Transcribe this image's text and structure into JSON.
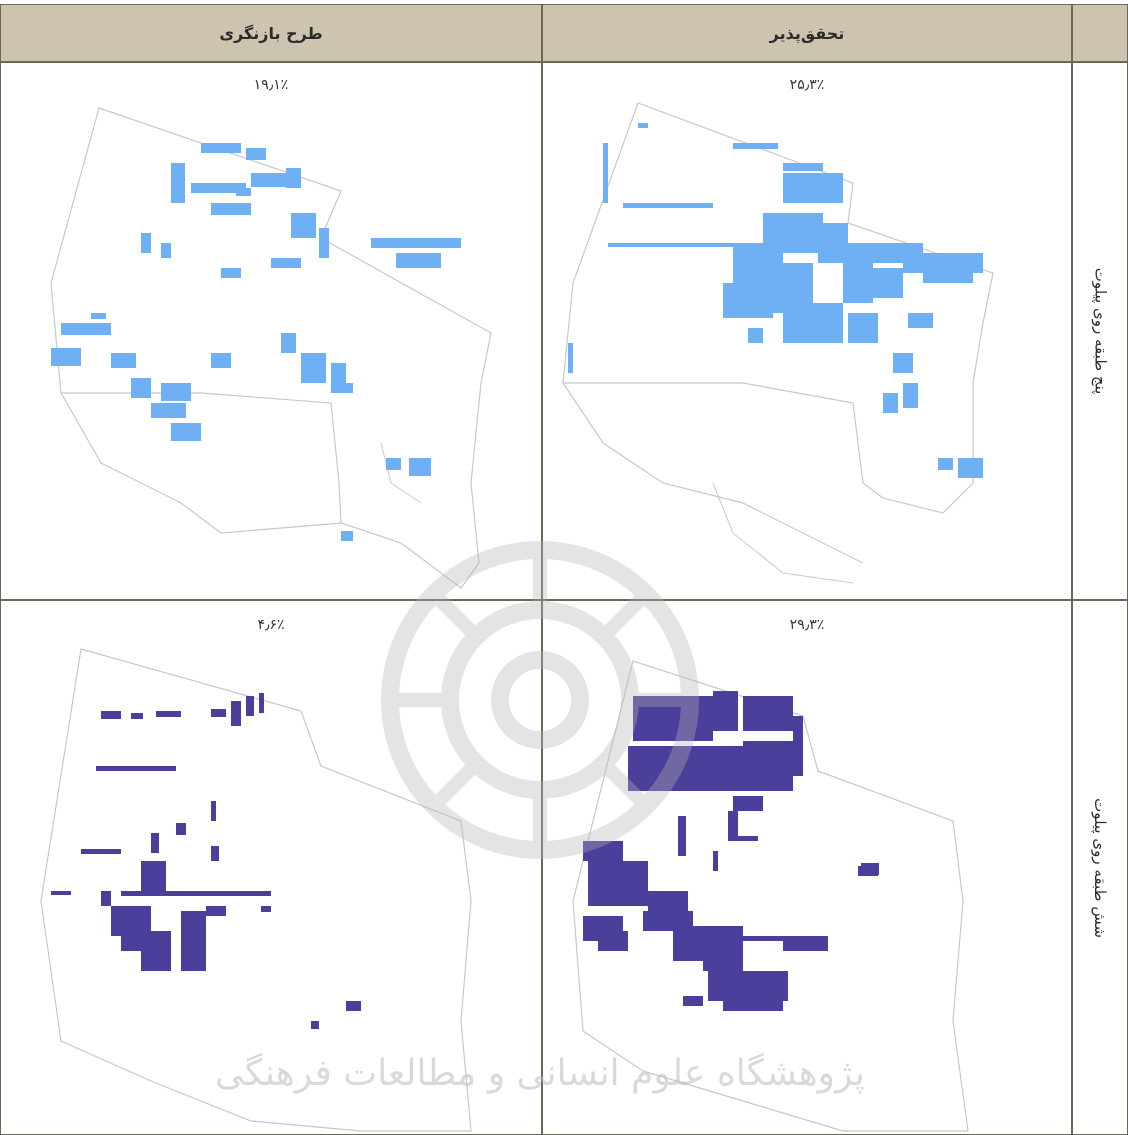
{
  "table": {
    "columns": [
      "طرح بازنگری",
      "تحقق‌پذیر",
      ""
    ],
    "rows": [
      {
        "label": "پنج طبقه روی پیلوت",
        "values": [
          "۱۹٫۱٪",
          "۲۵٫۳٪"
        ]
      },
      {
        "label": "شش طبقه روی پیلوت",
        "values": [
          "۴٫۶٪",
          "۲۹٫۳٪"
        ]
      }
    ]
  },
  "watermark": {
    "text": "پژوهشگاه علوم انسانی و مطالعات فرهنگی"
  },
  "colors": {
    "header_bg": "#cdc4b0",
    "border": "#6d6758",
    "light_blue_parcels": "#6fb0f5",
    "dark_purple_parcels": "#4a3f9a",
    "outline": "#c8c8c8"
  }
}
